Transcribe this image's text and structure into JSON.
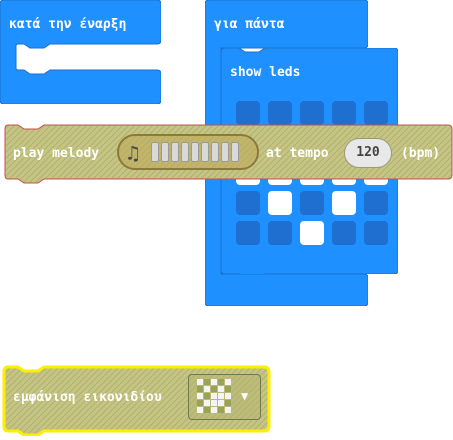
{
  "blocks": {
    "on_start": {
      "label": "κατά την έναρξη"
    },
    "forever": {
      "label": "για πάντα"
    },
    "show_leds": {
      "label": "show leds",
      "grid": [
        [
          0,
          0,
          0,
          0,
          0
        ],
        [
          0,
          1,
          0,
          1,
          0
        ],
        [
          1,
          1,
          1,
          1,
          1
        ],
        [
          0,
          1,
          0,
          1,
          0
        ],
        [
          0,
          0,
          1,
          0,
          0
        ]
      ]
    },
    "play_melody": {
      "label": "play melody",
      "note_icon": "music-note-icon",
      "cells": 9,
      "at_tempo_label": "at tempo",
      "tempo_value": "120",
      "unit_label": "(bpm)"
    },
    "show_icon": {
      "label": "εμφάνιση εικονιδίου",
      "dropdown_arrow": "chevron-down-icon"
    }
  },
  "colors": {
    "block_blue": "#1e90ff",
    "block_blue_dark": "#1a6fc9",
    "led_off": "#1f6fd0",
    "led_on": "#ffffff",
    "disabled_fill": "#c8c090",
    "disabled_border": "#c0504d",
    "selected_outline": "#ffee00"
  }
}
